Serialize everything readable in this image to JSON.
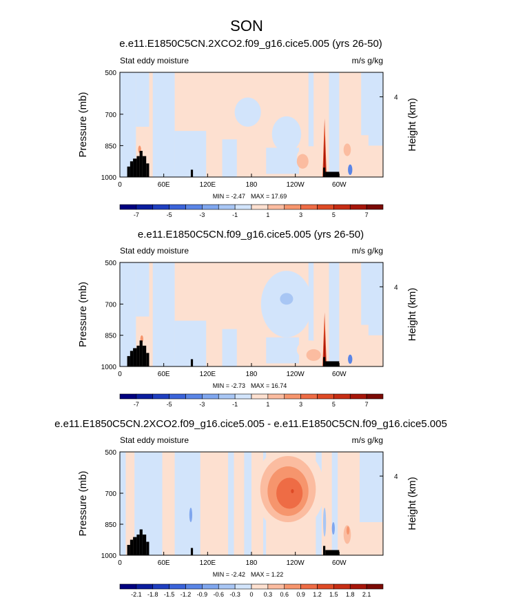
{
  "figure": {
    "title": "SON",
    "x_ticks": [
      "0",
      "60E",
      "120E",
      "180",
      "120W",
      "60W"
    ],
    "x_tick_lons": [
      0,
      60,
      120,
      180,
      240,
      300
    ],
    "x_range": [
      0,
      360
    ],
    "y_ticks": [
      "500",
      "700",
      "850",
      "1000"
    ],
    "y_tick_values": [
      500,
      700,
      850,
      1000
    ],
    "y_range": [
      500,
      1000
    ],
    "right_ticks": [
      "4"
    ],
    "right_tick_pressure": 617,
    "left_axis_label": "Pressure (mb)",
    "right_axis_label": "Height (km)",
    "left_label": "Stat eddy moisture",
    "right_label": "m/s g/kg"
  },
  "chart_data": [
    {
      "type": "heatmap",
      "title": "e.e11.E1850C5CN.2XCO2.f09_g16.cice5.005 (yrs 26-50)",
      "min_label": "MIN = -2.47",
      "max_label": "MAX = 17.69",
      "colorbar_labels": [
        "-7",
        "-5",
        "-3",
        "-1",
        "1",
        "3",
        "5",
        "7"
      ],
      "colorbar_levels": [
        -8,
        -7,
        -6,
        -5,
        -4,
        -3,
        -2,
        -1,
        1,
        2,
        3,
        4,
        5,
        6,
        7,
        8
      ],
      "colorbar_colors": [
        "#00007f",
        "#0a1d9e",
        "#1f3fc0",
        "#3a63d9",
        "#5a85e6",
        "#7fa6ee",
        "#a8c6f4",
        "#d2e4fb",
        "#fde0d0",
        "#fbbca0",
        "#f6956d",
        "#ee6c45",
        "#de4a25",
        "#c62d14",
        "#a7160a",
        "#7b0a05"
      ],
      "features": [
        {
          "kind": "blob",
          "lon": 175,
          "p": 690,
          "rx": 18,
          "rp": 70,
          "color": "#d2e4fb"
        },
        {
          "kind": "blob",
          "lon": 228,
          "p": 795,
          "rx": 20,
          "rp": 85,
          "color": "#d2e4fb"
        },
        {
          "kind": "blob",
          "lon": 262,
          "p": 903,
          "rx": 20,
          "rp": 50,
          "color": "#fde0d0"
        },
        {
          "kind": "blob",
          "lon": 250,
          "p": 925,
          "rx": 8,
          "rp": 35,
          "color": "#fbbca0"
        },
        {
          "kind": "blob",
          "lon": 311,
          "p": 870,
          "rx": 5,
          "rp": 30,
          "color": "#fbbca0"
        },
        {
          "kind": "blob",
          "lon": 315,
          "p": 965,
          "rx": 3,
          "rp": 25,
          "color": "#5a85e6"
        },
        {
          "kind": "blob",
          "lon": 27,
          "p": 868,
          "rx": 2,
          "rp": 18,
          "color": "#f6956d"
        },
        {
          "kind": "spike",
          "lon": 280,
          "p_top": 720,
          "color": "#de4a25"
        }
      ]
    },
    {
      "type": "heatmap",
      "title": "e.e11.E1850C5CN.f09_g16.cice5.005 (yrs 26-50)",
      "min_label": "MIN = -2.73",
      "max_label": "MAX = 16.74",
      "colorbar_labels": [
        "-7",
        "-5",
        "-3",
        "-1",
        "1",
        "3",
        "5",
        "7"
      ],
      "colorbar_levels": [
        -8,
        -7,
        -6,
        -5,
        -4,
        -3,
        -2,
        -1,
        1,
        2,
        3,
        4,
        5,
        6,
        7,
        8
      ],
      "colorbar_colors": [
        "#00007f",
        "#0a1d9e",
        "#1f3fc0",
        "#3a63d9",
        "#5a85e6",
        "#7fa6ee",
        "#a8c6f4",
        "#d2e4fb",
        "#fde0d0",
        "#fbbca0",
        "#f6956d",
        "#ee6c45",
        "#de4a25",
        "#c62d14",
        "#a7160a",
        "#7b0a05"
      ],
      "features": [
        {
          "kind": "blob",
          "lon": 228,
          "p": 700,
          "rx": 35,
          "rp": 160,
          "color": "#d2e4fb"
        },
        {
          "kind": "blob",
          "lon": 228,
          "p": 675,
          "rx": 9,
          "rp": 28,
          "color": "#a8c6f4"
        },
        {
          "kind": "blob",
          "lon": 260,
          "p": 920,
          "rx": 18,
          "rp": 45,
          "color": "#fde0d0"
        },
        {
          "kind": "blob",
          "lon": 265,
          "p": 945,
          "rx": 10,
          "rp": 28,
          "color": "#fbbca0"
        },
        {
          "kind": "blob",
          "lon": 315,
          "p": 965,
          "rx": 3,
          "rp": 22,
          "color": "#5a85e6"
        },
        {
          "kind": "blob",
          "lon": 30,
          "p": 868,
          "rx": 2,
          "rp": 18,
          "color": "#f6956d"
        },
        {
          "kind": "spike",
          "lon": 280,
          "p_top": 740,
          "color": "#de4a25"
        }
      ]
    },
    {
      "type": "heatmap",
      "title": "e.e11.E1850C5CN.2XCO2.f09_g16.cice5.005 - e.e11.E1850C5CN.f09_g16.cice5.005",
      "min_label": "MIN = -2.42",
      "max_label": "MAX = 1.22",
      "colorbar_labels": [
        "-2.1",
        "-1.8",
        "-1.5",
        "-1.2",
        "-0.9",
        "-0.6",
        "-0.3",
        "0",
        "0.3",
        "0.6",
        "0.9",
        "1.2",
        "1.5",
        "1.8",
        "2.1"
      ],
      "colorbar_levels": [
        -2.4,
        -2.1,
        -1.8,
        -1.5,
        -1.2,
        -0.9,
        -0.6,
        -0.3,
        0,
        0.3,
        0.6,
        0.9,
        1.2,
        1.5,
        1.8,
        2.1
      ],
      "colorbar_colors": [
        "#00007f",
        "#0a1d9e",
        "#1f3fc0",
        "#3a63d9",
        "#5a85e6",
        "#7fa6ee",
        "#a8c6f4",
        "#d2e4fb",
        "#fde0d0",
        "#fbbca0",
        "#f6956d",
        "#ee6c45",
        "#de4a25",
        "#c62d14",
        "#a7160a",
        "#7b0a05"
      ],
      "features": [
        {
          "kind": "blob",
          "lon": 232,
          "p": 680,
          "rx": 48,
          "rp": 205,
          "color": "#fde0d0"
        },
        {
          "kind": "blob",
          "lon": 230,
          "p": 680,
          "rx": 38,
          "rp": 160,
          "color": "#fbbca0"
        },
        {
          "kind": "blob",
          "lon": 230,
          "p": 690,
          "rx": 28,
          "rp": 120,
          "color": "#f6956d"
        },
        {
          "kind": "blob",
          "lon": 232,
          "p": 700,
          "rx": 18,
          "rp": 75,
          "color": "#ee6c45"
        },
        {
          "kind": "blob",
          "lon": 236,
          "p": 690,
          "rx": 2,
          "rp": 10,
          "color": "#de4a25"
        },
        {
          "kind": "blob",
          "lon": 311,
          "p": 900,
          "rx": 5,
          "rp": 45,
          "color": "#fbbca0"
        },
        {
          "kind": "blob",
          "lon": 312,
          "p": 880,
          "rx": 2,
          "rp": 20,
          "color": "#f6956d"
        },
        {
          "kind": "blob",
          "lon": 97,
          "p": 805,
          "rx": 2,
          "rp": 35,
          "color": "#7fa6ee"
        },
        {
          "kind": "blob",
          "lon": 280,
          "p": 840,
          "rx": 2,
          "rp": 70,
          "color": "#a8c6f4"
        },
        {
          "kind": "blob",
          "lon": 292,
          "p": 870,
          "rx": 2,
          "rp": 30,
          "color": "#7fa6ee"
        }
      ]
    }
  ]
}
